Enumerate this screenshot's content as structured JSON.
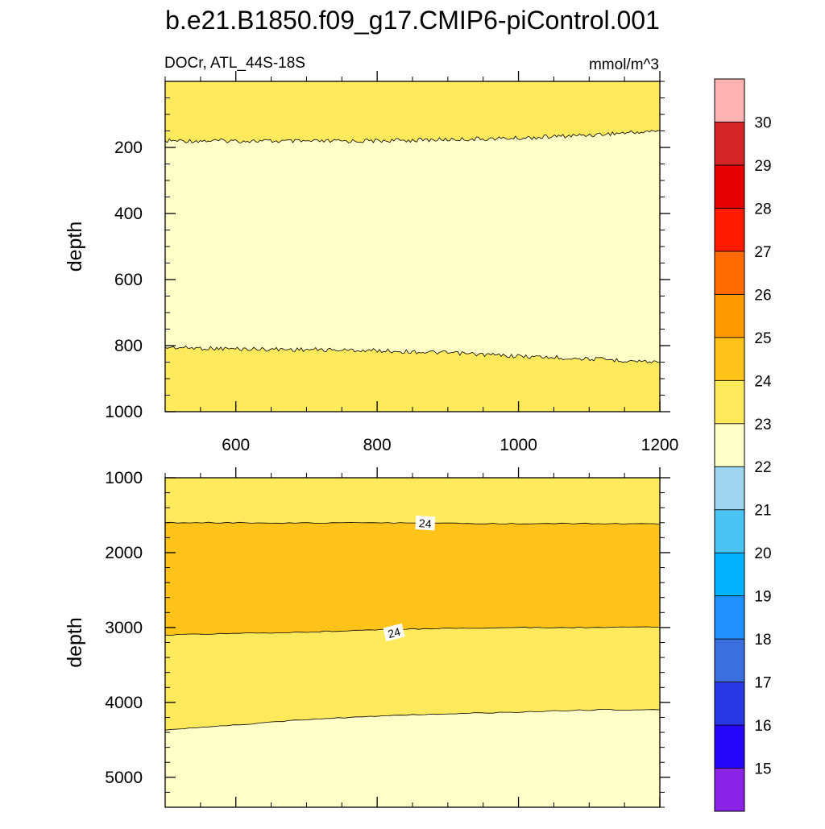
{
  "title": "b.e21.B1850.f09_g17.CMIP6-piControl.001",
  "subtitle_left": "DOCr, ATL_44S-18S",
  "subtitle_right": "mmol/m^3",
  "colors": {
    "c22_23": "#ffffc8",
    "c23_24": "#ffea5e",
    "c24_25": "#ffc31a",
    "colorbar": [
      "#8b23e6",
      "#2707fb",
      "#2538e4",
      "#3b6fe0",
      "#1e90ff",
      "#00b2ff",
      "#4ac3f5",
      "#9ed6ef",
      "#ffffcc",
      "#ffea5e",
      "#ffc31a",
      "#ff9900",
      "#ff6b00",
      "#ff1a00",
      "#e60000",
      "#d42525",
      "#ffb3b3"
    ]
  },
  "chart_data": [
    {
      "type": "area",
      "name": "upper-panel",
      "xlabel": "",
      "ylabel": "depth",
      "xlim": [
        500,
        1200
      ],
      "ylim": [
        1000,
        0
      ],
      "x_ticks": [
        600,
        800,
        1000,
        1200
      ],
      "y_ticks": [
        200,
        400,
        600,
        800,
        1000
      ],
      "x_tick_labels": [
        "600",
        "800",
        "1000",
        "1200"
      ],
      "y_tick_labels": [
        "200",
        "400",
        "600",
        "800",
        "1000"
      ],
      "contours": [
        {
          "level": 23,
          "x": [
            500,
            600,
            700,
            800,
            900,
            1000,
            1100,
            1200
          ],
          "depth": [
            180,
            180,
            182,
            180,
            176,
            172,
            162,
            150
          ]
        },
        {
          "level": 23,
          "x": [
            500,
            600,
            700,
            800,
            900,
            1000,
            1100,
            1200
          ],
          "depth": [
            805,
            810,
            812,
            815,
            822,
            832,
            840,
            850
          ]
        }
      ],
      "fill_bands": [
        "23-24",
        "22-23",
        "23-24"
      ],
      "contour_labels": []
    },
    {
      "type": "area",
      "name": "lower-panel",
      "xlabel": "",
      "ylabel": "depth",
      "xlim": [
        500,
        1200
      ],
      "ylim": [
        5400,
        1000
      ],
      "x_ticks": [
        600,
        800,
        1000,
        1200
      ],
      "y_ticks": [
        1000,
        2000,
        3000,
        4000,
        5000
      ],
      "y_tick_labels": [
        "1000",
        "2000",
        "3000",
        "4000",
        "5000"
      ],
      "contours": [
        {
          "level": 24,
          "x": [
            500,
            600,
            700,
            800,
            900,
            1000,
            1100,
            1200
          ],
          "depth": [
            1600,
            1600,
            1605,
            1600,
            1610,
            1615,
            1610,
            1620
          ]
        },
        {
          "level": 24,
          "x": [
            500,
            600,
            700,
            800,
            900,
            1000,
            1100,
            1200
          ],
          "depth": [
            3100,
            3080,
            3060,
            3030,
            3010,
            3000,
            3000,
            2995
          ]
        },
        {
          "level": 23,
          "x": [
            500,
            600,
            700,
            800,
            900,
            1000,
            1100,
            1200
          ],
          "depth": [
            4370,
            4300,
            4230,
            4180,
            4150,
            4130,
            4100,
            4100
          ]
        }
      ],
      "fill_bands": [
        "23-24",
        "24-25",
        "23-24",
        "22-23"
      ],
      "contour_labels": [
        {
          "text": "24",
          "x": 868,
          "depth": 1610
        },
        {
          "text": "24",
          "x": 824,
          "depth": 3070
        }
      ]
    }
  ],
  "colorbar": {
    "labels": [
      "15",
      "16",
      "17",
      "18",
      "19",
      "20",
      "21",
      "22",
      "23",
      "24",
      "25",
      "26",
      "27",
      "28",
      "29",
      "30"
    ]
  }
}
